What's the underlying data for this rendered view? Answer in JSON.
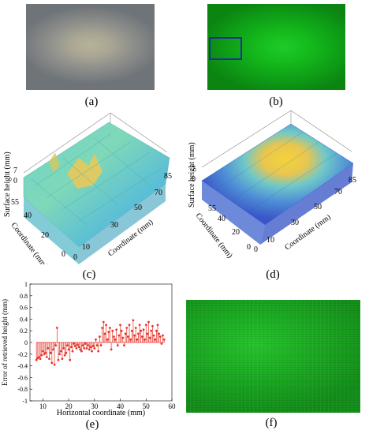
{
  "panels": {
    "a": {
      "caption": "(a)"
    },
    "b": {
      "caption": "(b)"
    },
    "c": {
      "caption": "(c)",
      "z_axis_label": "Surface height (mm)",
      "y_axis_label": "Coordinate (mm)",
      "x_axis_label": "Coordinate (mm)",
      "z_ticks": [
        "7",
        "0"
      ],
      "y_ticks": [
        "55",
        "40",
        "20",
        "0"
      ],
      "x_ticks": [
        "0",
        "10",
        "30",
        "50",
        "70",
        "85"
      ]
    },
    "d": {
      "caption": "(d)",
      "z_axis_label": "Surface height (mm)",
      "y_axis_label": "Coordinate (mm)",
      "x_axis_label": "Coordinate (mm)",
      "z_ticks": [
        "7",
        "0"
      ],
      "y_ticks": [
        "55",
        "40",
        "20",
        "0"
      ],
      "x_ticks": [
        "0",
        "10",
        "30",
        "50",
        "70",
        "85"
      ]
    },
    "e": {
      "caption": "(e)"
    },
    "f": {
      "caption": "(f)"
    }
  },
  "chart_data": {
    "type": "stem",
    "title": "",
    "xlabel": "Horizontal coordinate (mm)",
    "ylabel": "Error of retrieved height (mm)",
    "xlim": [
      5,
      60
    ],
    "ylim": [
      -1,
      1
    ],
    "xticks": [
      10,
      20,
      30,
      40,
      50,
      60
    ],
    "yticks": [
      -1,
      -0.8,
      -0.6,
      -0.4,
      -0.2,
      0,
      0.2,
      0.4,
      0.6,
      0.8,
      1
    ],
    "ytick_labels": [
      "-1",
      "-0.8",
      "-0.6",
      "-0.4",
      "-0.2",
      "0",
      "0.2",
      "0.4",
      "0.6",
      "0.8",
      "1"
    ],
    "grid": false,
    "color": "#e8352b",
    "x": [
      7.5,
      8,
      8.5,
      9,
      9.5,
      10,
      10.5,
      11,
      11.5,
      12,
      12.5,
      13,
      13.5,
      14,
      14.5,
      15,
      15.5,
      16,
      16.5,
      17,
      17.5,
      18,
      18.5,
      19,
      19.5,
      20,
      20.5,
      21,
      21.5,
      22,
      22.5,
      23,
      23.5,
      24,
      24.5,
      25,
      25.5,
      26,
      26.5,
      27,
      27.5,
      28,
      28.5,
      29,
      29.5,
      30,
      30.5,
      31,
      31.5,
      32,
      32.5,
      33,
      33.5,
      34,
      34.5,
      35,
      35.5,
      36,
      36.5,
      37,
      37.5,
      38,
      38.5,
      39,
      39.5,
      40,
      40.5,
      41,
      41.5,
      42,
      42.5,
      43,
      43.5,
      44,
      44.5,
      45,
      45.5,
      46,
      46.5,
      47,
      47.5,
      48,
      48.5,
      49,
      49.5,
      50,
      50.5,
      51,
      51.5,
      52,
      52.5,
      53,
      53.5,
      54,
      54.5,
      55,
      55.5,
      56,
      56.5,
      57
    ],
    "y": [
      -0.3,
      -0.27,
      -0.25,
      -0.28,
      -0.22,
      -0.15,
      -0.2,
      -0.18,
      -0.25,
      -0.1,
      -0.28,
      -0.18,
      -0.35,
      -0.12,
      -0.38,
      -0.05,
      0.25,
      -0.3,
      -0.2,
      -0.15,
      -0.28,
      -0.1,
      -0.22,
      -0.18,
      -0.05,
      -0.12,
      -0.3,
      -0.08,
      -0.15,
      -0.02,
      -0.06,
      -0.1,
      -0.04,
      -0.08,
      -0.12,
      -0.15,
      -0.05,
      -0.1,
      -0.02,
      -0.1,
      -0.05,
      -0.12,
      -0.08,
      -0.15,
      -0.06,
      -0.1,
      0.05,
      -0.05,
      -0.15,
      0.1,
      -0.05,
      0.25,
      0.35,
      0.15,
      0.3,
      0.05,
      0.18,
      0.25,
      -0.12,
      0.2,
      0.1,
      0.05,
      0.22,
      -0.05,
      0.12,
      0.3,
      0.2,
      0.08,
      -0.05,
      0.15,
      0.25,
      0.1,
      0.3,
      0.05,
      0.2,
      0.38,
      0.12,
      0.25,
      0.05,
      0.15,
      0.3,
      0.2,
      0.1,
      0.22,
      0.05,
      0.3,
      0.15,
      0.35,
      0.08,
      0.2,
      0.28,
      0.12,
      0.05,
      0.2,
      0.3,
      0.15,
      0.1,
      -0.02,
      0.12,
      0.05
    ]
  }
}
